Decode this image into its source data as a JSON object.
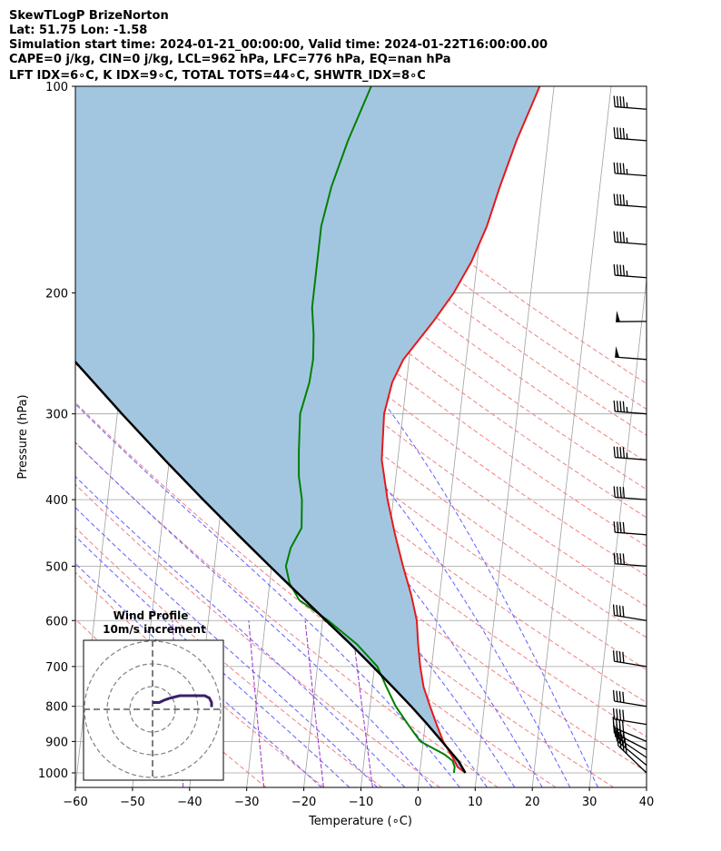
{
  "chart_data": {
    "type": "line",
    "title_lines": [
      "SkewTLogP BrizeNorton",
      "Lat: 51.75   Lon: -1.58",
      "Simulation start time: 2024-01-21_00:00:00, Valid time: 2024-01-22T16:00:00.00",
      "CAPE=0 j/kg, CIN=0 j/kg, LCL=962 hPa, LFC=776 hPa, EQ=nan hPa",
      "LFT IDX=6∘C, K IDX=9∘C, TOTAL TOTS=44∘C, SHWTR_IDX=8∘C"
    ],
    "xlabel": "Temperature (∘C)",
    "ylabel": "Pressure (hPa)",
    "xlim": [
      -60,
      40
    ],
    "ylim": [
      1050,
      100
    ],
    "y_scale": "log",
    "x_ticks": [
      -60,
      -50,
      -40,
      -30,
      -20,
      -10,
      0,
      10,
      20,
      30,
      40
    ],
    "x_tick_labels": [
      "−60",
      "−50",
      "−40",
      "−30",
      "−20",
      "−10",
      "0",
      "10",
      "20",
      "30",
      "40"
    ],
    "y_ticks": [
      100,
      200,
      300,
      400,
      500,
      600,
      700,
      800,
      900,
      1000
    ],
    "y_tick_labels": [
      "100",
      "200",
      "300",
      "400",
      "500",
      "600",
      "700",
      "800",
      "900",
      "1000"
    ],
    "grid": true,
    "series": [
      {
        "role": "temperature",
        "color": "#e31a1c",
        "points": [
          [
            1000,
            8.0
          ],
          [
            980,
            6.5
          ],
          [
            950,
            5.5
          ],
          [
            925,
            4.5
          ],
          [
            900,
            3.5
          ],
          [
            850,
            2.0
          ],
          [
            800,
            0.5
          ],
          [
            750,
            -1.0
          ],
          [
            700,
            -2.0
          ],
          [
            650,
            -2.8
          ],
          [
            600,
            -3.5
          ],
          [
            550,
            -5.0
          ],
          [
            500,
            -7.0
          ],
          [
            450,
            -9.0
          ],
          [
            400,
            -11.0
          ],
          [
            350,
            -12.8
          ],
          [
            300,
            -13.3
          ],
          [
            270,
            -12.5
          ],
          [
            250,
            -11.0
          ],
          [
            220,
            -6.5
          ],
          [
            200,
            -3.5
          ],
          [
            180,
            -1.0
          ],
          [
            160,
            1.0
          ],
          [
            140,
            2.5
          ],
          [
            120,
            4.5
          ],
          [
            100,
            7.5
          ]
        ]
      },
      {
        "role": "dewpoint",
        "color": "#008000",
        "points": [
          [
            1000,
            6.0
          ],
          [
            980,
            6.0
          ],
          [
            960,
            5.5
          ],
          [
            940,
            4.0
          ],
          [
            900,
            -0.5
          ],
          [
            870,
            -2.0
          ],
          [
            850,
            -3.0
          ],
          [
            800,
            -5.5
          ],
          [
            750,
            -7.5
          ],
          [
            700,
            -9.5
          ],
          [
            650,
            -13.5
          ],
          [
            600,
            -19.0
          ],
          [
            560,
            -24.5
          ],
          [
            530,
            -26.5
          ],
          [
            500,
            -27.5
          ],
          [
            470,
            -27.0
          ],
          [
            440,
            -25.5
          ],
          [
            400,
            -26.0
          ],
          [
            370,
            -27.0
          ],
          [
            340,
            -27.5
          ],
          [
            300,
            -28.0
          ],
          [
            270,
            -27.0
          ],
          [
            250,
            -26.8
          ],
          [
            230,
            -27.2
          ],
          [
            210,
            -28.0
          ],
          [
            190,
            -28.0
          ],
          [
            170,
            -28.0
          ],
          [
            160,
            -28.0
          ],
          [
            140,
            -27.0
          ],
          [
            120,
            -25.0
          ],
          [
            100,
            -22.0
          ]
        ]
      },
      {
        "role": "parcel",
        "color": "#000000",
        "points": [
          [
            1000,
            8.0
          ],
          [
            962,
            6.6
          ],
          [
            900,
            3.3
          ],
          [
            850,
            0.4
          ],
          [
            800,
            -2.8
          ],
          [
            750,
            -6.4
          ],
          [
            700,
            -10.3
          ],
          [
            650,
            -14.6
          ],
          [
            600,
            -19.4
          ],
          [
            550,
            -24.6
          ],
          [
            500,
            -30.3
          ],
          [
            450,
            -36.5
          ],
          [
            400,
            -43.3
          ],
          [
            350,
            -50.8
          ],
          [
            300,
            -59.2
          ],
          [
            250,
            -68.8
          ],
          [
            200,
            -80.0
          ],
          [
            150,
            -94.5
          ],
          [
            125,
            -103.0
          ],
          [
            100,
            -113.0
          ]
        ]
      }
    ],
    "wind_barbs": [
      {
        "p": 1000,
        "speed_kt": 40,
        "flag_deg": 30
      },
      {
        "p": 975,
        "speed_kt": 40,
        "flag_deg": 25
      },
      {
        "p": 950,
        "speed_kt": 40,
        "flag_deg": 18
      },
      {
        "p": 925,
        "speed_kt": 35,
        "flag_deg": 10
      },
      {
        "p": 900,
        "speed_kt": 40,
        "flag_deg": 5
      },
      {
        "p": 850,
        "speed_kt": 40,
        "flag_deg": -10
      },
      {
        "p": 800,
        "speed_kt": 40,
        "flag_deg": -10
      },
      {
        "p": 700,
        "speed_kt": 40,
        "flag_deg": -10
      },
      {
        "p": 600,
        "speed_kt": 40,
        "flag_deg": -10
      },
      {
        "p": 500,
        "speed_kt": 40,
        "flag_deg": -15
      },
      {
        "p": 450,
        "speed_kt": 40,
        "flag_deg": -15
      },
      {
        "p": 400,
        "speed_kt": 40,
        "flag_deg": -15
      },
      {
        "p": 350,
        "speed_kt": 45,
        "flag_deg": -15
      },
      {
        "p": 300,
        "speed_kt": 45,
        "flag_deg": -15
      },
      {
        "p": 250,
        "speed_kt": 50,
        "flag_deg": -15
      },
      {
        "p": 220,
        "speed_kt": 50,
        "flag_deg": -20
      },
      {
        "p": 190,
        "speed_kt": 45,
        "flag_deg": -15
      },
      {
        "p": 170,
        "speed_kt": 45,
        "flag_deg": -15
      },
      {
        "p": 150,
        "speed_kt": 45,
        "flag_deg": -15
      },
      {
        "p": 135,
        "speed_kt": 45,
        "flag_deg": -15
      },
      {
        "p": 120,
        "speed_kt": 45,
        "flag_deg": -15
      },
      {
        "p": 108,
        "speed_kt": 45,
        "flag_deg": -15
      }
    ],
    "wind_profile_inset": {
      "title": "Wind Profile",
      "subtitle": "10m/s increment",
      "rings_ms": [
        10,
        20,
        30
      ],
      "hodograph_uv": [
        [
          26,
          1
        ],
        [
          26,
          3
        ],
        [
          25,
          5
        ],
        [
          23,
          6
        ],
        [
          21,
          6
        ],
        [
          18,
          6
        ],
        [
          15,
          6
        ],
        [
          12,
          6
        ],
        [
          8,
          5
        ],
        [
          5,
          4
        ],
        [
          3,
          3
        ],
        [
          0,
          3
        ]
      ]
    },
    "shading_color": "#a3c6e0",
    "dry_adiabat_color": "#f08080",
    "moist_adiabat_color": "#5f5fff",
    "mixing_ratio_color": "#9933cc",
    "isotherm_color": "#a0a0a0"
  }
}
